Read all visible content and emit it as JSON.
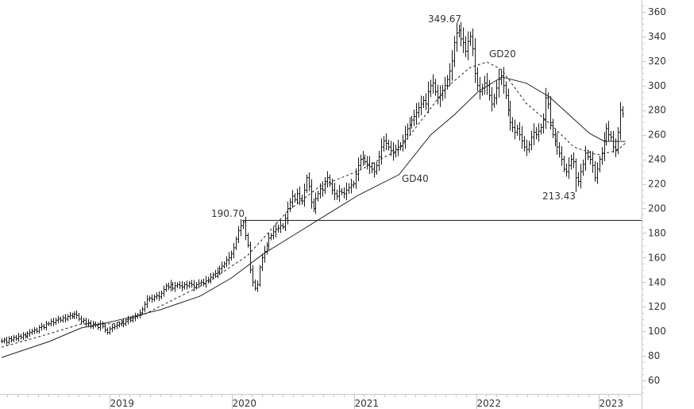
{
  "chart_data": {
    "type": "ohlc",
    "interval": "weekly",
    "x_start": 2018.12,
    "ylim": [
      50,
      370
    ],
    "yticks": [
      60,
      80,
      100,
      120,
      140,
      160,
      180,
      200,
      220,
      240,
      260,
      280,
      300,
      320,
      340,
      360
    ],
    "xticks": [
      "2019",
      "2020",
      "2021",
      "2022",
      "2023"
    ],
    "xtick_values": [
      2019,
      2020,
      2021,
      2022,
      2023
    ],
    "xlim": [
      2018.12,
      2023.37
    ],
    "grid": false,
    "closes": [
      92,
      93,
      91,
      94,
      93,
      95,
      94,
      96,
      95,
      97,
      96,
      98,
      99,
      100,
      101,
      100,
      103,
      104,
      103,
      106,
      106,
      108,
      107,
      109,
      110,
      109,
      111,
      110,
      112,
      113,
      112,
      114,
      113,
      110,
      108,
      109,
      106,
      107,
      104,
      106,
      105,
      103,
      106,
      104,
      101,
      99,
      102,
      103,
      104,
      105,
      106,
      107,
      106,
      108,
      110,
      109,
      111,
      112,
      113,
      115,
      118,
      122,
      126,
      127,
      126,
      128,
      129,
      128,
      131,
      134,
      137,
      136,
      138,
      135,
      137,
      138,
      137,
      136,
      138,
      137,
      139,
      138,
      136,
      138,
      139,
      140,
      139,
      141,
      142,
      144,
      146,
      147,
      148,
      151,
      153,
      155,
      158,
      160,
      163,
      168,
      175,
      182,
      186,
      189,
      178,
      170,
      150,
      140,
      135,
      138,
      152,
      160,
      165,
      170,
      176,
      178,
      181,
      183,
      184,
      186,
      185,
      192,
      200,
      205,
      210,
      207,
      212,
      208,
      206,
      215,
      225,
      218,
      205,
      200,
      208,
      212,
      216,
      215,
      222,
      225,
      220,
      215,
      212,
      210,
      214,
      213,
      212,
      215,
      217,
      219,
      220,
      228,
      235,
      240,
      241,
      238,
      236,
      234,
      232,
      230,
      235,
      242,
      250,
      255,
      253,
      250,
      247,
      245,
      248,
      250,
      251,
      255,
      260,
      265,
      268,
      272,
      275,
      278,
      282,
      285,
      288,
      285,
      295,
      300,
      302,
      295,
      290,
      292,
      296,
      300,
      305,
      312,
      320,
      335,
      343,
      345,
      338,
      335,
      328,
      336,
      340,
      330,
      310,
      300,
      295,
      298,
      302,
      300,
      292,
      285,
      290,
      298,
      305,
      308,
      300,
      292,
      280,
      270,
      266,
      262,
      265,
      260,
      255,
      250,
      248,
      252,
      258,
      262,
      260,
      263,
      266,
      272,
      290,
      285,
      270,
      260,
      255,
      250,
      245,
      240,
      232,
      230,
      235,
      240,
      238,
      225,
      222,
      230,
      236,
      245,
      242,
      240,
      235,
      225,
      232,
      240,
      245,
      255,
      265,
      260,
      258,
      250,
      248,
      262,
      280,
      277
    ],
    "series": [
      {
        "name": "GD20",
        "style": "dashed",
        "x": [
          2018.12,
          2018.51,
          2018.77,
          2019.03,
          2019.29,
          2019.55,
          2019.81,
          2020.0,
          2020.13,
          2020.26,
          2020.46,
          2020.72,
          2021.04,
          2021.37,
          2021.56,
          2021.76,
          2021.95,
          2022.09,
          2022.21,
          2022.41,
          2022.6,
          2022.8,
          2022.99,
          2023.15,
          2023.22
        ],
        "values": [
          87,
          98,
          106,
          106,
          114,
          127,
          140,
          153,
          161.5,
          175.7,
          198,
          217.8,
          230.7,
          248,
          272.7,
          298.6,
          314.7,
          319.3,
          312.8,
          285.6,
          269.5,
          250,
          243.6,
          246.9,
          253
        ]
      },
      {
        "name": "GD40",
        "style": "solid",
        "x": [
          2018.12,
          2018.51,
          2018.77,
          2019.03,
          2019.42,
          2019.74,
          2020.0,
          2020.26,
          2020.52,
          2020.78,
          2021.04,
          2021.37,
          2021.63,
          2021.82,
          2022.02,
          2022.21,
          2022.41,
          2022.6,
          2022.8,
          2022.93,
          2023.05,
          2023.22
        ],
        "values": [
          78.7,
          91.7,
          102.7,
          108,
          117.6,
          128.5,
          143.4,
          163,
          179,
          195,
          211,
          227.5,
          260,
          276,
          295.3,
          307,
          302,
          290.8,
          272.7,
          261,
          254.6,
          254.6
        ]
      }
    ],
    "horizontal_line": {
      "value": 190.7,
      "label": "190.70"
    },
    "annotations": {
      "high": "349.67",
      "low": "213.43",
      "gd20": "GD20",
      "gd40": "GD40"
    },
    "colors": {
      "bars": "#1a1a1a",
      "axis": "#c8c8c8",
      "text": "#333333"
    }
  }
}
